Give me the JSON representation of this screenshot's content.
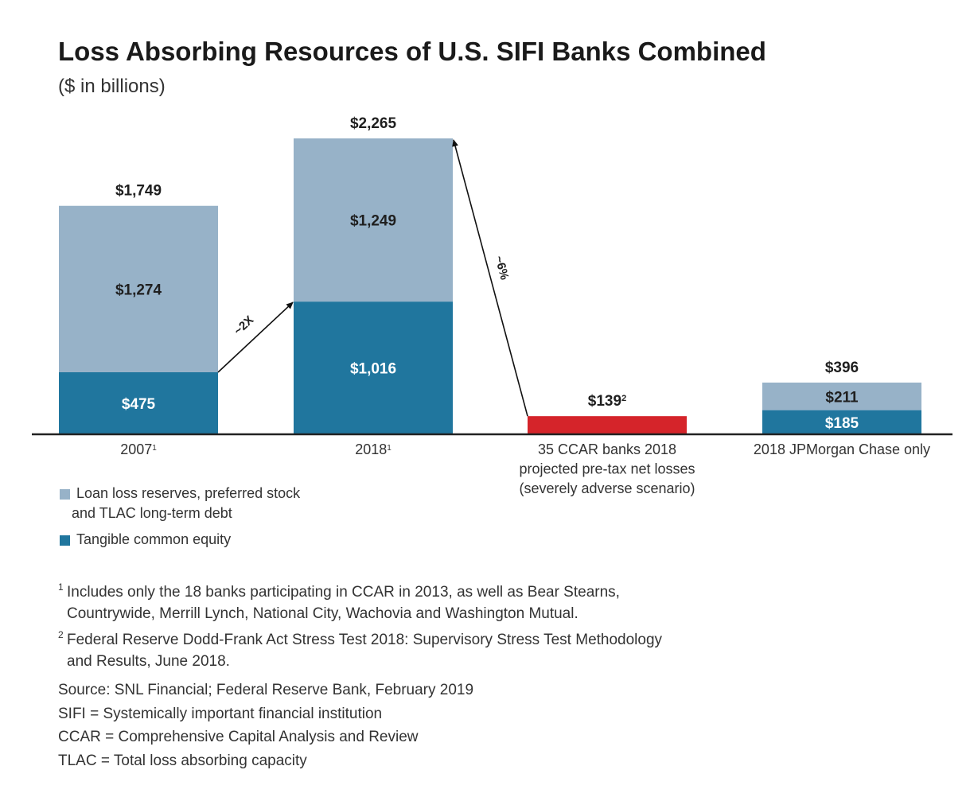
{
  "title": "Loss Absorbing Resources of U.S. SIFI Banks Combined",
  "subtitle": "($ in billions)",
  "colors": {
    "reserves": "#97b2c8",
    "equity": "#20769e",
    "losses": "#d5242a",
    "axis": "#222222",
    "text": "#222222"
  },
  "chart_data": {
    "type": "bar",
    "stacked": true,
    "categories": [
      {
        "label": "2007",
        "sup": "1"
      },
      {
        "label": "2018",
        "sup": "1"
      },
      {
        "label": "35 CCAR banks 2018\nprojected pre-tax net losses\n(severely adverse scenario)",
        "sup": ""
      },
      {
        "label": "2018 JPMorgan Chase only",
        "sup": ""
      }
    ],
    "series": [
      {
        "name": "Tangible common equity",
        "values": [
          475,
          1016,
          null,
          185
        ],
        "labels": [
          "$475",
          "$1,016",
          null,
          "$185"
        ]
      },
      {
        "name": "Loan loss reserves, preferred stock and TLAC long-term debt",
        "values": [
          1274,
          1249,
          null,
          211
        ],
        "labels": [
          "$1,274",
          "$1,249",
          null,
          "$211"
        ]
      },
      {
        "values": [
          null,
          null,
          139,
          null
        ],
        "labels": [
          null,
          null,
          null,
          null
        ]
      }
    ],
    "totals": [
      {
        "label": "$1,749",
        "sup": ""
      },
      {
        "label": "$2,265",
        "sup": ""
      },
      {
        "label": "$139",
        "sup": "2"
      },
      {
        "label": "$396",
        "sup": ""
      }
    ],
    "annotations": [
      {
        "text": "~2X",
        "from": "2007 top of tangible common equity",
        "to": "2018 top of tangible common equity"
      },
      {
        "text": "~6%",
        "from": "35 CCAR banks losses",
        "to": "2018 total"
      }
    ],
    "ylim": [
      0,
      2265
    ],
    "grid": false
  },
  "legend": [
    {
      "lines": [
        "Loan loss reserves, preferred stock",
        "and TLAC long-term debt"
      ]
    },
    {
      "lines": [
        "Tangible common equity"
      ]
    }
  ],
  "footnotes": [
    {
      "num": "1",
      "lines": [
        "Includes only the 18 banks participating in CCAR in 2013, as well as Bear Stearns,",
        "Countrywide, Merrill Lynch, National City, Wachovia and Washington Mutual."
      ]
    },
    {
      "num": "2",
      "lines": [
        "Federal Reserve Dodd-Frank Act Stress Test 2018: Supervisory Stress Test Methodology",
        "and Results, June 2018."
      ]
    }
  ],
  "notes": [
    "Source: SNL Financial; Federal Reserve Bank, February 2019",
    "SIFI = Systemically important financial institution",
    "CCAR = Comprehensive Capital Analysis and Review",
    "TLAC = Total loss absorbing capacity"
  ]
}
